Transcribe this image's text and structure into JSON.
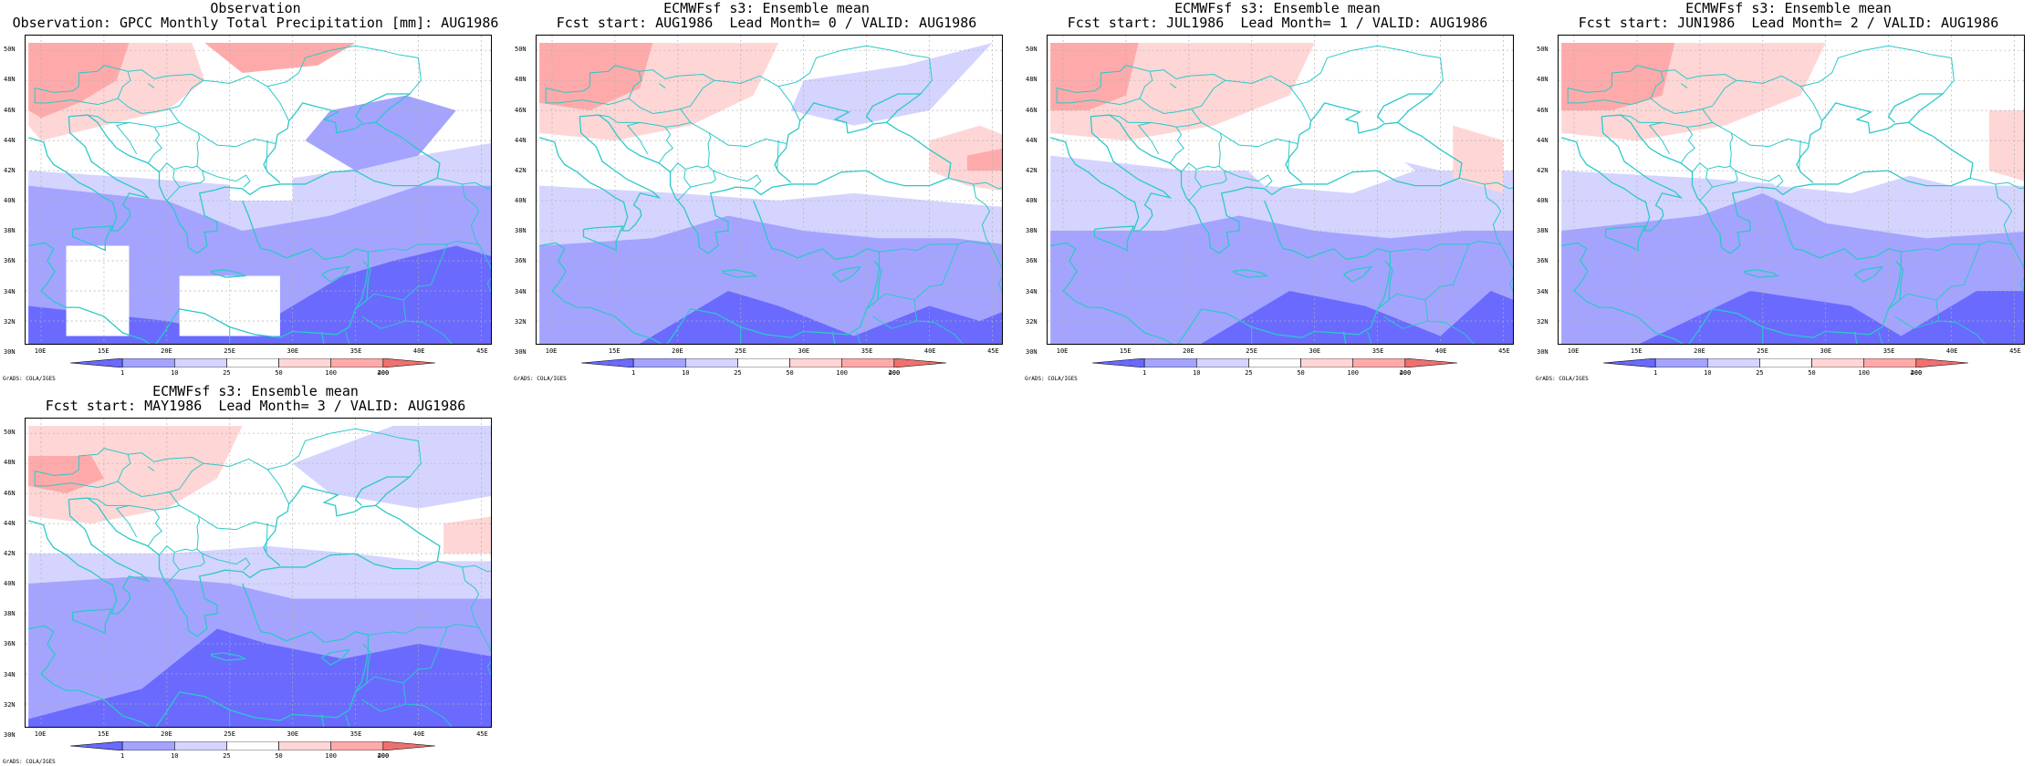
{
  "panels": [
    {
      "title1": "Observation",
      "title2": "Observation: GPCC Monthly Total Precipitation [mm]: AUG1986",
      "style": "obs"
    },
    {
      "title1": "ECMWFsf s3: Ensemble mean",
      "title2": "Fcst start: AUG1986  Lead Month= 0 / VALID: AUG1986",
      "style": "lead0"
    },
    {
      "title1": "ECMWFsf s3: Ensemble mean",
      "title2": "Fcst start: JUL1986  Lead Month= 1 / VALID: AUG1986",
      "style": "lead1"
    },
    {
      "title1": "ECMWFsf s3: Ensemble mean",
      "title2": "Fcst start: JUN1986  Lead Month= 2 / VALID: AUG1986",
      "style": "lead2"
    },
    {
      "title1": "ECMWFsf s3: Ensemble mean",
      "title2": "Fcst start: MAY1986  Lead Month= 3 / VALID: AUG1986",
      "style": "lead3"
    }
  ],
  "lat_labels": [
    "50N",
    "48N",
    "46N",
    "44N",
    "42N",
    "40N",
    "38N",
    "36N",
    "34N",
    "32N",
    "30N"
  ],
  "lon_labels": [
    "10E",
    "15E",
    "20E",
    "25E",
    "30E",
    "35E",
    "40E",
    "45E"
  ],
  "colorbar": {
    "levels": [
      "1",
      "10",
      "25",
      "50",
      "100",
      "200",
      "400"
    ],
    "colors": [
      "#6a6aff",
      "#a4a4ff",
      "#d4d4ff",
      "#ffffff",
      "#ffd6d6",
      "#ffaaaa",
      "#f07070"
    ]
  },
  "credit": "GrADS: COLA/IGES",
  "colors": {
    "coast": "#2cc8c8",
    "grid": "#b0b0b0"
  }
}
